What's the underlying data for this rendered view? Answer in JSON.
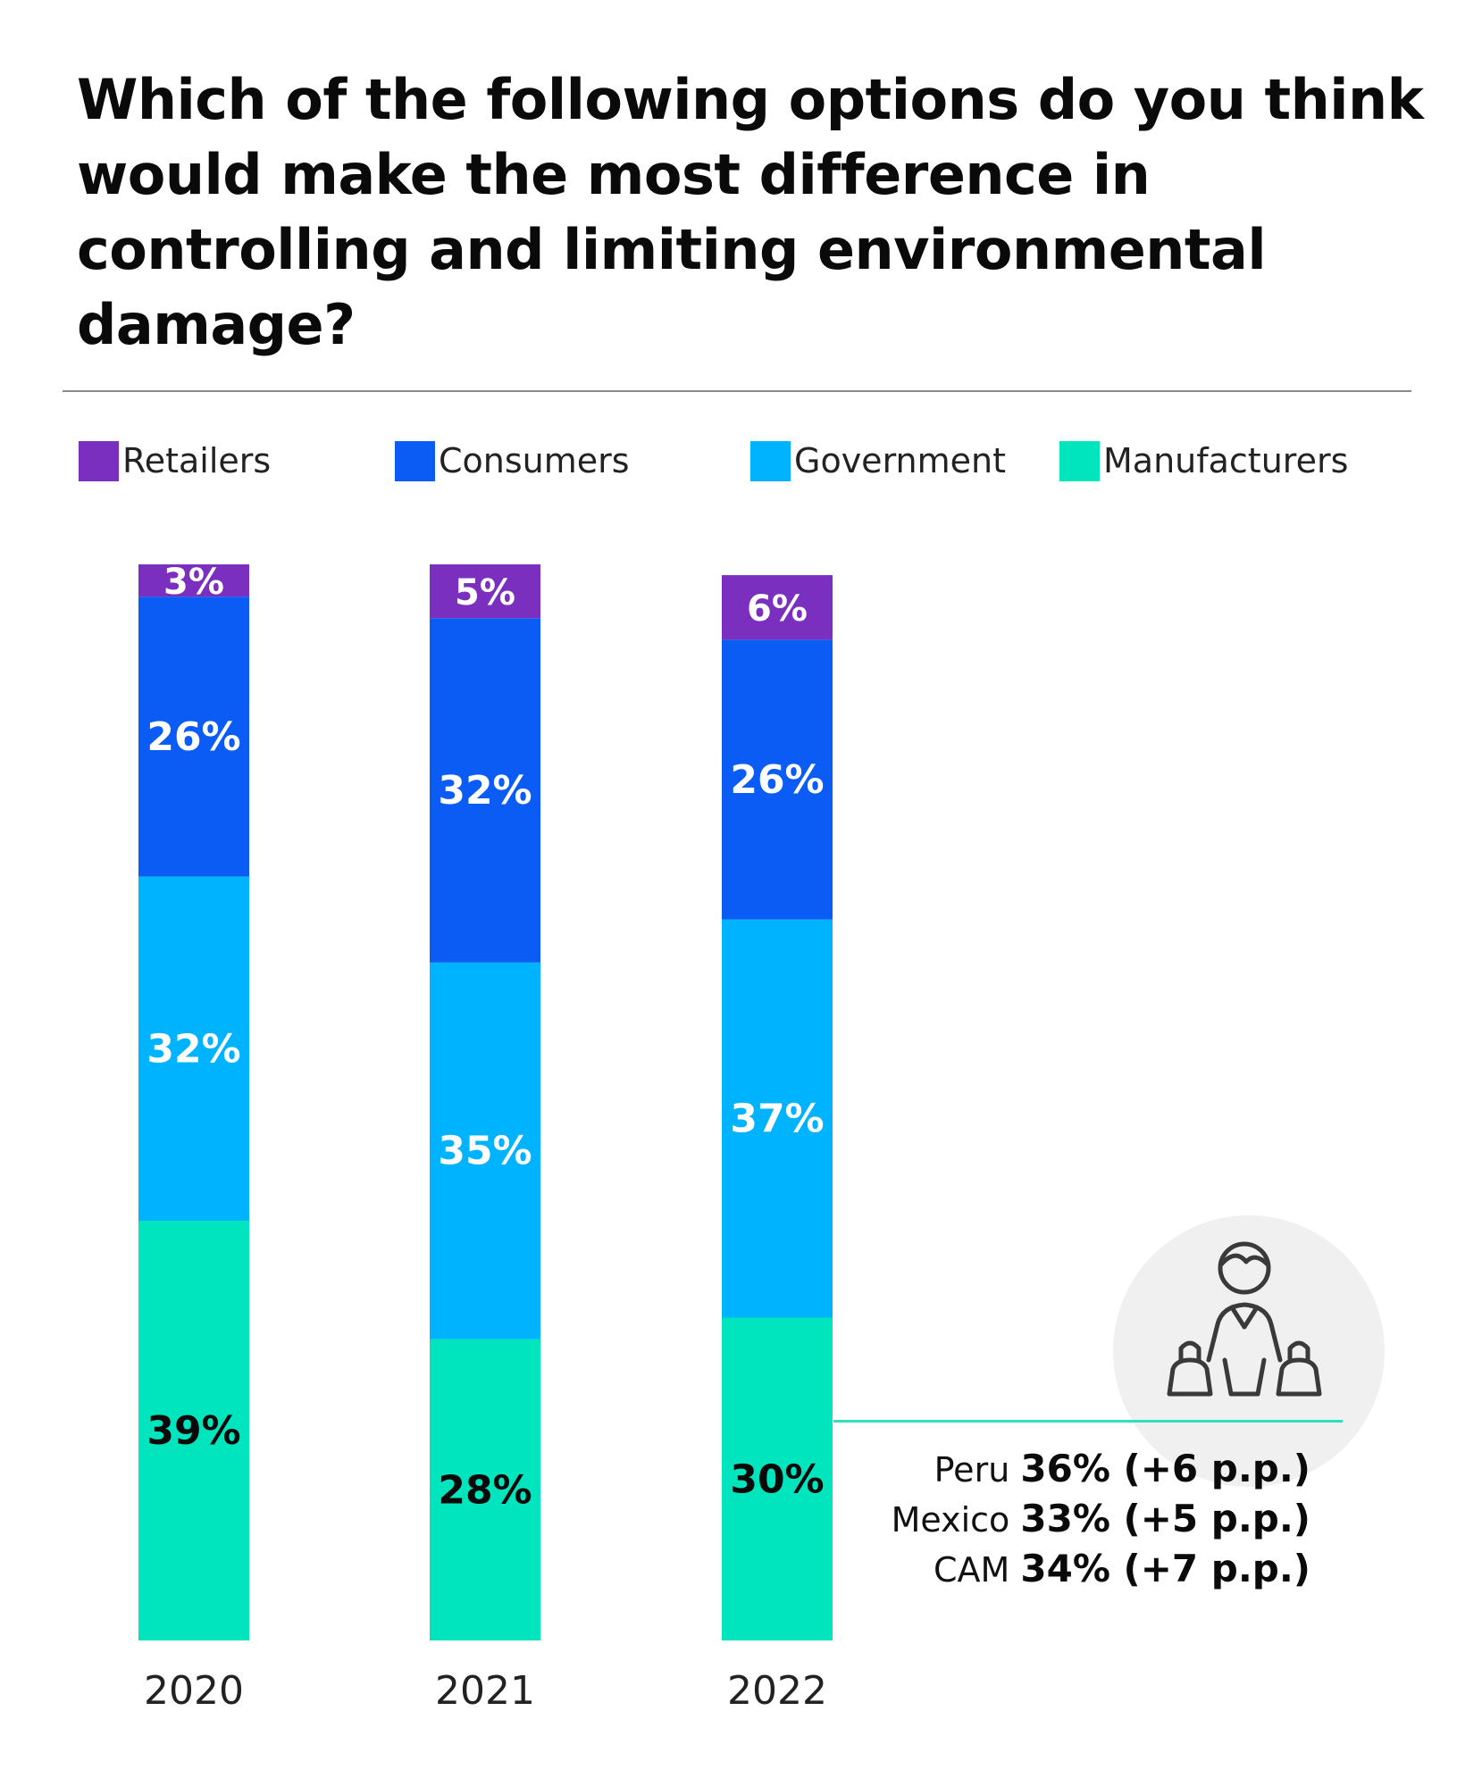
{
  "title": "Which of the following options do you think would make the most difference in controlling and limiting environmental damage?",
  "colors": {
    "Retailers": "#7b2fbe",
    "Consumers": "#0a5cf5",
    "Government": "#00b3ff",
    "Manufacturers": "#00e5bd",
    "callout_line": "#2ee0c0",
    "icon_circle": "#f0f0f0",
    "icon_stroke": "#3a3a3a"
  },
  "legend": [
    {
      "label": "Retailers",
      "color": "#7b2fbe"
    },
    {
      "label": "Consumers",
      "color": "#0a5cf5"
    },
    {
      "label": "Government",
      "color": "#00b3ff"
    },
    {
      "label": "Manufacturers",
      "color": "#00e5bd"
    }
  ],
  "chart_data": {
    "type": "bar",
    "stacked": true,
    "categories": [
      "2020",
      "2021",
      "2022"
    ],
    "series": [
      {
        "name": "Manufacturers",
        "values": [
          39,
          28,
          30
        ],
        "labels": [
          "39%",
          "28%",
          "30%"
        ]
      },
      {
        "name": "Government",
        "values": [
          32,
          35,
          37
        ],
        "labels": [
          "32%",
          "35%",
          "37%"
        ]
      },
      {
        "name": "Consumers",
        "values": [
          26,
          32,
          26
        ],
        "labels": [
          "26%",
          "32%",
          "26%"
        ]
      },
      {
        "name": "Retailers",
        "values": [
          3,
          5,
          6
        ],
        "labels": [
          "3%",
          "5%",
          "6%"
        ]
      }
    ],
    "title": "Which of the following options do you think would make the most difference in controlling and limiting environmental damage?",
    "legend_position": "top"
  },
  "callout": {
    "icon": "shopper-with-bags-icon",
    "rows": [
      {
        "name": "Peru",
        "value": "36% (+6 p.p.)"
      },
      {
        "name": "Mexico",
        "value": "33% (+5 p.p.)"
      },
      {
        "name": "CAM",
        "value": "34% (+7 p.p.)"
      }
    ]
  }
}
